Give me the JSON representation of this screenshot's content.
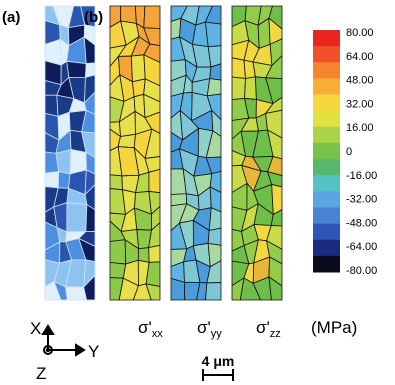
{
  "panels": {
    "a": "(a)",
    "b": "(b)"
  },
  "colorbar": {
    "ticks": [
      "80.00",
      "64.00",
      "48.00",
      "32.00",
      "16.00",
      "0",
      "-16.00",
      "-32.00",
      "-48.00",
      "-64.00",
      "-80.00"
    ],
    "unit": "(MPa)"
  },
  "components": [
    {
      "symbol": "σ'",
      "subscript": "xx"
    },
    {
      "symbol": "σ'",
      "subscript": "yy"
    },
    {
      "symbol": "σ'",
      "subscript": "zz"
    }
  ],
  "axes": {
    "x": "X",
    "y": "Y",
    "z": "Z"
  },
  "scale_bar": "4 μm"
}
